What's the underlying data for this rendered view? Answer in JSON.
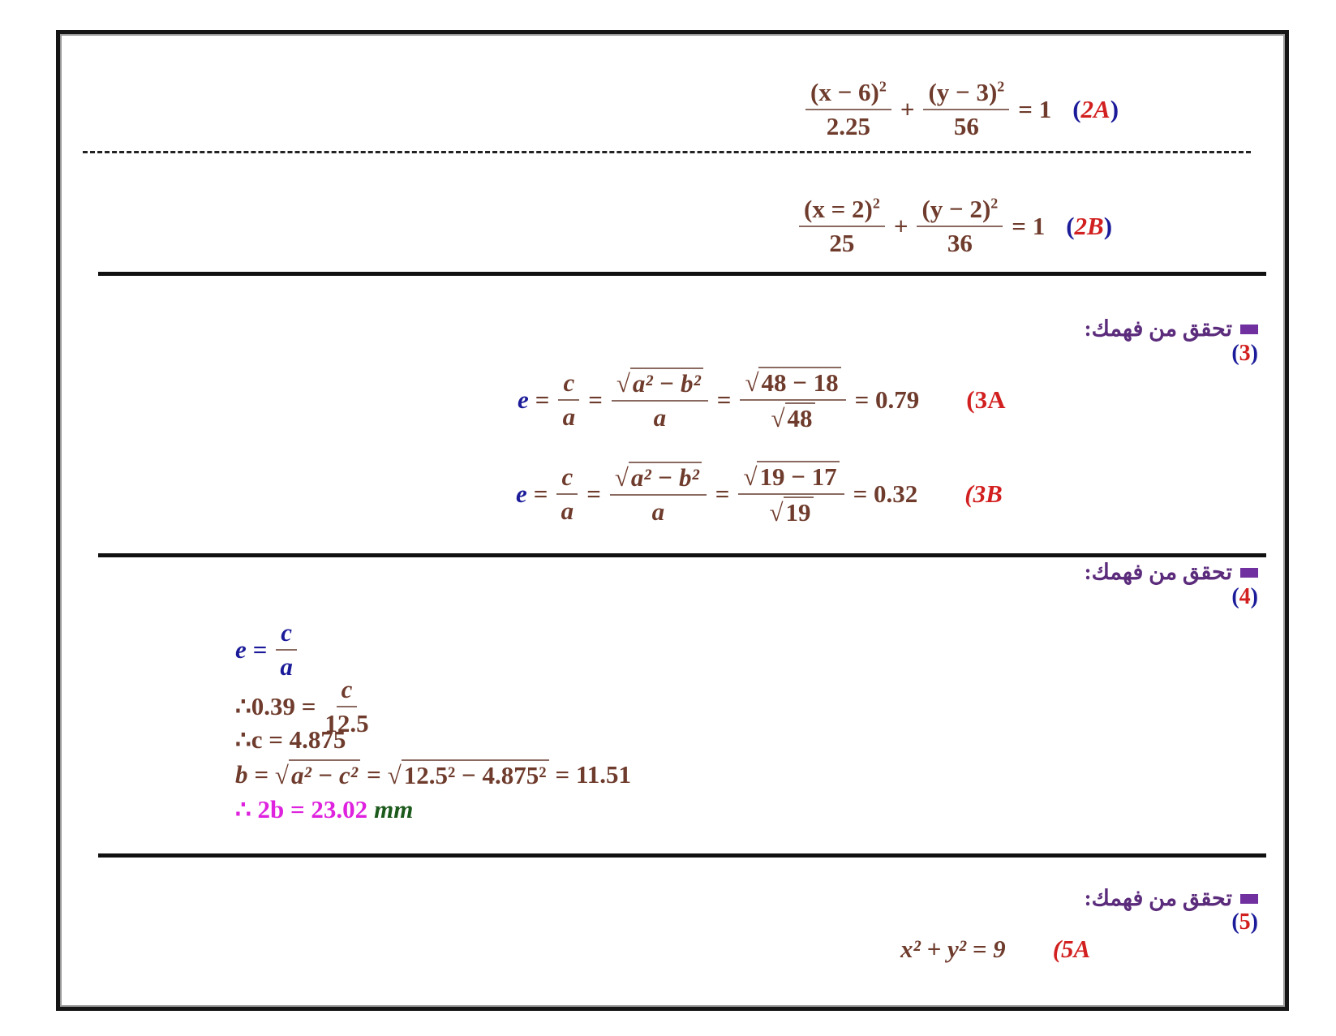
{
  "q2": {
    "a": {
      "num1": "(x − 6)",
      "den1": "2.25",
      "plus": "+",
      "num2": "(y − 3)",
      "den2": "56",
      "sq": "2",
      "eq": "= 1",
      "label_open": "(",
      "label": "2A",
      "label_close": ")"
    },
    "b": {
      "num1": "(x = 2)",
      "den1": "25",
      "plus": "+",
      "num2": "(y − 2)",
      "den2": "36",
      "sq": "2",
      "eq": "= 1",
      "label_open": "(",
      "label": "2B",
      "label_close": ")"
    }
  },
  "q3": {
    "heading": "تحقق من فهمك:",
    "number_open": "(",
    "number": "3",
    "number_close": ")",
    "a": {
      "e": "e",
      "eq": "=",
      "c": "c",
      "a": "a",
      "rad": "a² − b²",
      "rad_num": "48 − 18",
      "rad_den": "48",
      "result": "= 0.79",
      "label": "(3A"
    },
    "b": {
      "e": "e",
      "eq": "=",
      "c": "c",
      "a": "a",
      "rad": "a² − b²",
      "rad_num": "19 − 17",
      "rad_den": "19",
      "result": "= 0.32",
      "label": "(3B"
    }
  },
  "q4": {
    "heading": "تحقق من فهمك:",
    "number_open": "(",
    "number": "4",
    "number_close": ")",
    "line1": {
      "lhs": "e =",
      "num": "c",
      "den": "a"
    },
    "line2": {
      "lhs": "∴0.39 =",
      "num": "c",
      "den": "12.5"
    },
    "line3": "∴c = 4.875",
    "line4": {
      "lhs": "b =",
      "rad1": "a² − c²",
      "eq": "=",
      "rad2": "12.5² − 4.875²",
      "result": "= 11.51"
    },
    "line5": {
      "text": "∴ 2b = 23.02",
      "unit": "mm"
    }
  },
  "q5": {
    "heading": "تحقق من فهمك:",
    "number_open": "(",
    "number": "5",
    "number_close": ")",
    "a": {
      "eq": "x² + y² = 9",
      "label": "(5A"
    }
  },
  "colors": {
    "text": "#6e3b2c",
    "blue": "#1c1c9a",
    "red": "#d21f1f",
    "purple": "#7030a0",
    "magenta": "#de22de",
    "green": "#1c5a1c"
  }
}
